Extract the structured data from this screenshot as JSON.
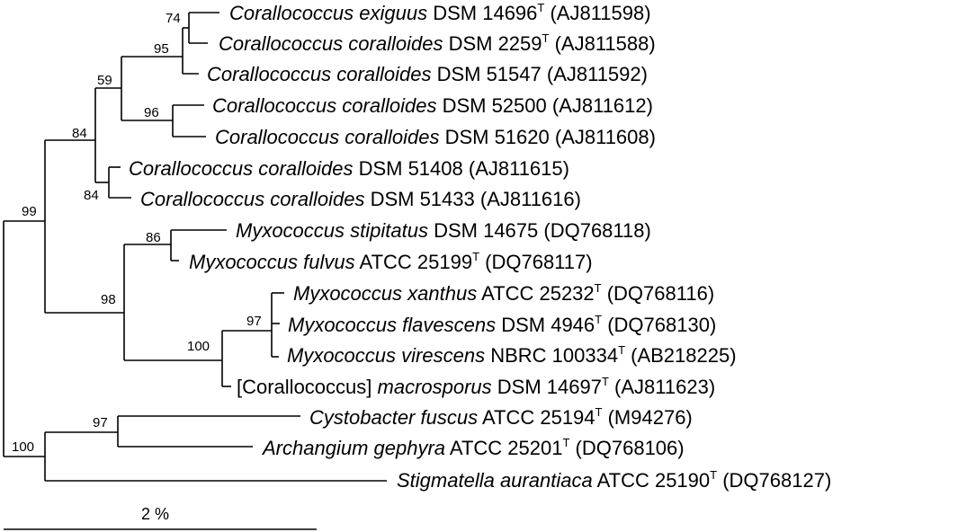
{
  "taxa": [
    {
      "species": "Corallococcus exiguus",
      "strain": "DSM 14696",
      "type_strain": true,
      "accession": "(AJ811598)"
    },
    {
      "species": "Corallococcus coralloides",
      "strain": "DSM 2259",
      "type_strain": true,
      "accession": "(AJ811588)"
    },
    {
      "species": "Corallococcus coralloides",
      "strain": "DSM 51547",
      "type_strain": false,
      "accession": "(AJ811592)"
    },
    {
      "species": "Corallococcus coralloides",
      "strain": "DSM 52500",
      "type_strain": false,
      "accession": "(AJ811612)"
    },
    {
      "species": "Corallococcus coralloides",
      "strain": "DSM 51620",
      "type_strain": false,
      "accession": "(AJ811608)"
    },
    {
      "species": "Corallococcus coralloides",
      "strain": "DSM 51408",
      "type_strain": false,
      "accession": "(AJ811615)"
    },
    {
      "species": "Corallococcus coralloides",
      "strain": "DSM 51433",
      "type_strain": false,
      "accession": "(AJ811616)"
    },
    {
      "species": "Myxococcus stipitatus",
      "strain": "DSM 14675",
      "type_strain": false,
      "accession": "(DQ768118)"
    },
    {
      "species": "Myxococcus fulvus",
      "strain": "ATCC 25199",
      "type_strain": true,
      "accession": "(DQ768117)"
    },
    {
      "species": "Myxococcus xanthus",
      "strain": "ATCC 25232",
      "type_strain": true,
      "accession": "(DQ768116)"
    },
    {
      "species": "Myxococcus flavescens",
      "strain": "DSM 4946",
      "type_strain": true,
      "accession": "(DQ768130)"
    },
    {
      "species": "Myxococcus virescens",
      "strain": "NBRC 100334",
      "type_strain": true,
      "accession": "(AB218225)"
    },
    {
      "species": "macrosporus",
      "prefix": "[Corallococcus]",
      "strain": "DSM 14697",
      "type_strain": true,
      "accession": "(AJ811623)"
    },
    {
      "species": "Cystobacter fuscus",
      "strain": "ATCC 25194",
      "type_strain": true,
      "accession": "(M94276)"
    },
    {
      "species": "Archangium gephyra",
      "strain": "ATCC 25201",
      "type_strain": true,
      "accession": "(DQ768106)"
    },
    {
      "species": "Stigmatella aurantiaca",
      "strain": "ATCC 25190",
      "type_strain": true,
      "accession": "(DQ768127)"
    }
  ],
  "type_strain_mark": "T",
  "bootstrap_values": [
    "74",
    "95",
    "59",
    "96",
    "84",
    "84",
    "99",
    "86",
    "98",
    "97",
    "100",
    "97",
    "100"
  ],
  "scale_bar": {
    "label": "2 %",
    "value_percent": 2
  }
}
